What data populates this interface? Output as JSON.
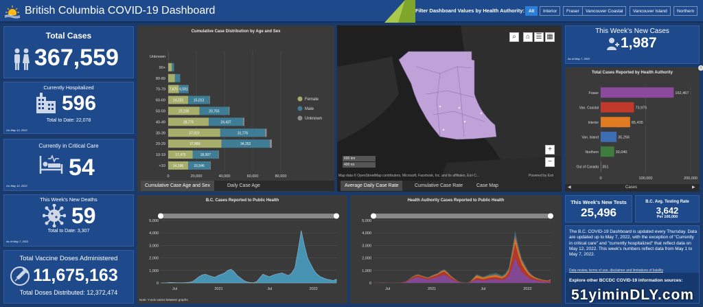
{
  "header": {
    "title": "British Columbia COVID-19 Dashboard",
    "filter_label": "Filter Dashboard Values by Health Authority:",
    "filters": [
      "All",
      "Interior",
      "Fraser",
      "Vancouver Coastal",
      "Vancouver Island",
      "Northern"
    ],
    "selected_filter": "All"
  },
  "total_cases": {
    "label": "Total Cases",
    "value": "367,559"
  },
  "hospitalized": {
    "label": "Currently Hospitalized",
    "value": "596",
    "sub": "Total to Date: 22,078",
    "date": "On May 12, 2022"
  },
  "critical": {
    "label": "Currently in Critical Care",
    "value": "54",
    "date": "On May 12, 2022"
  },
  "deaths": {
    "label": "This Week's New Deaths",
    "value": "59",
    "sub": "Total to Date: 3,307",
    "date": "As of May 7, 2022"
  },
  "vaccine": {
    "label": "Total Vaccine Doses Administered",
    "value": "11,675,163",
    "sub": "Total Doses Distributed: 12,372,474"
  },
  "age_chart": {
    "title": "Cumulative Case Distribution by Age and Sex",
    "tabs": [
      "Cumulative Case Age and Sex",
      "Daily Case Age"
    ]
  },
  "map": {
    "attribution": "Map data © OpenStreetMap contributors, Microsoft, Facebook, Inc. and its affiliates, Esri C...",
    "powered": "Powered by Esri",
    "scale_km": "600 km",
    "scale_mi": "400 mi",
    "tabs": [
      "Average Daily Case Rate",
      "Cumulative Case Rate",
      "Case Map"
    ]
  },
  "new_cases": {
    "label": "This Week's New Cases",
    "value": "1,987",
    "date": "As of May 7, 2022"
  },
  "ha_chart": {
    "title": "Total Cases Reported by Health Authority",
    "xlabel": "Cases"
  },
  "bc_cases": {
    "title": "B.C. Cases Reported to Public Health",
    "note": "Note: Y-axis varies between graphs."
  },
  "ha_cases": {
    "title": "Health Authority Cases Reported to Public Health"
  },
  "tests": {
    "label": "This Week's New Tests",
    "value": "25,496"
  },
  "testing_rate": {
    "label": "B.C. Avg. Testing Rate",
    "value": "3,642",
    "unit": "Per 100,000"
  },
  "info": {
    "text": "The B.C. COVID-19 Dashboard is updated every Thursday. Data are updated up to May 7, 2022, with the exception of \"Currently in critical care\" and \"currently hospitalized\" that reflect data on May 12, 2022. This week's numbers reflect data from May 1 to May 7, 2022.",
    "terms": "Data review, terms of use, disclaimer and limitations of liability",
    "explore": "Explore other BCCDC COVID-19 information sources:"
  },
  "watermark": "51yiminDLY.com",
  "chart_data": [
    {
      "type": "bar",
      "title": "Cumulative Case Distribution by Age and Sex",
      "orientation": "horizontal",
      "stacked": true,
      "categories": [
        "<10",
        "10-19",
        "20-29",
        "30-39",
        "40-49",
        "50-59",
        "60-69",
        "70-79",
        "80-89",
        "90+",
        "Unknown"
      ],
      "series": [
        {
          "name": "Female",
          "values": [
            14196,
            17475,
            37889,
            37022,
            28775,
            22230,
            14231,
            7670,
            4800,
            2600,
            40
          ]
        },
        {
          "name": "Male",
          "values": [
            15546,
            18007,
            34252,
            31776,
            24437,
            20755,
            15013,
            6591,
            3600,
            1500,
            60
          ]
        },
        {
          "name": "Unknown",
          "values": [
            400,
            500,
            1500,
            1200,
            900,
            600,
            400,
            200,
            100,
            50,
            20
          ]
        }
      ],
      "xticks": [
        "0",
        "20,000",
        "40,000",
        "60,000",
        "80,000"
      ],
      "xlim": [
        0,
        80000
      ],
      "legend": "right",
      "colors": {
        "Female": "#a5ae6a",
        "Male": "#3f7d96",
        "Unknown": "#8c8c8c"
      }
    },
    {
      "type": "bar",
      "title": "Total Cases Reported by Health Authority",
      "orientation": "horizontal",
      "categories": [
        "Fraser",
        "Van. Coastal",
        "Interior",
        "Van. Island",
        "Northern",
        "Out of Canada"
      ],
      "values": [
        162467,
        73975,
        65435,
        35256,
        30040,
        351
      ],
      "labels": [
        "162,467",
        "73,975",
        "65,435",
        "35,256",
        "30,040",
        "351"
      ],
      "colors": [
        "#8c4a9e",
        "#c0392b",
        "#e07b24",
        "#3d6db5",
        "#3f7d3f",
        "#666666"
      ],
      "xticks": [
        "0",
        "100,000",
        "200,000"
      ],
      "xlim": [
        0,
        200000
      ],
      "xlabel": "Cases"
    },
    {
      "type": "area",
      "title": "B.C. Cases Reported to Public Health",
      "yticks": [
        "0",
        "1,000",
        "2,000",
        "3,000",
        "4,000",
        "5,000"
      ],
      "ylim": [
        0,
        5000
      ],
      "xticks": [
        "Jul",
        "2021",
        "Jul",
        "2022"
      ],
      "series": [
        {
          "values": [
            0,
            10,
            20,
            40,
            30,
            20,
            15,
            20,
            30,
            60,
            120,
            300,
            500,
            650,
            700,
            600,
            520,
            450,
            600,
            700,
            800,
            1000,
            1100,
            900,
            600,
            400,
            200,
            80,
            40,
            20,
            100,
            400,
            700,
            600,
            500,
            600,
            700,
            750,
            800,
            700,
            600,
            800,
            1200,
            2600,
            4200,
            3000,
            2000,
            1500,
            1000,
            700,
            500,
            400,
            300,
            250,
            200,
            300
          ]
        }
      ]
    },
    {
      "type": "area",
      "title": "Health Authority Cases Reported to Public Health",
      "stacked": true,
      "yticks": [
        "0",
        "1,000",
        "2,000",
        "3,000",
        "4,000",
        "5,000"
      ],
      "ylim": [
        0,
        5000
      ],
      "xticks": [
        "Jul",
        "2021",
        "Jul",
        "2022"
      ],
      "series": [
        {
          "name": "Fraser",
          "values": [
            0,
            5,
            10,
            20,
            15,
            10,
            8,
            10,
            15,
            30,
            70,
            200,
            330,
            420,
            450,
            380,
            320,
            260,
            350,
            420,
            480,
            600,
            650,
            500,
            320,
            200,
            100,
            40,
            20,
            10,
            40,
            150,
            250,
            220,
            180,
            220,
            260,
            280,
            300,
            260,
            220,
            320,
            550,
            1200,
            2000,
            1400,
            900,
            650,
            420,
            300,
            220,
            170,
            120,
            100,
            80,
            120
          ]
        },
        {
          "name": "Van. Coastal",
          "values": [
            0,
            3,
            5,
            10,
            8,
            6,
            4,
            5,
            8,
            15,
            30,
            60,
            100,
            140,
            150,
            130,
            110,
            100,
            130,
            150,
            170,
            220,
            250,
            200,
            150,
            100,
            60,
            20,
            10,
            5,
            20,
            80,
            150,
            130,
            110,
            130,
            150,
            160,
            170,
            150,
            130,
            180,
            300,
            700,
            1100,
            800,
            550,
            400,
            280,
            200,
            140,
            110,
            90,
            70,
            60,
            90
          ]
        },
        {
          "name": "Interior",
          "values": [
            0,
            1,
            3,
            5,
            4,
            2,
            2,
            3,
            4,
            8,
            12,
            25,
            40,
            50,
            60,
            50,
            50,
            50,
            70,
            80,
            90,
            110,
            120,
            120,
            80,
            60,
            25,
            10,
            6,
            3,
            25,
            120,
            220,
            180,
            150,
            150,
            170,
            180,
            190,
            160,
            140,
            180,
            200,
            400,
            650,
            500,
            350,
            280,
            190,
            140,
            100,
            80,
            60,
            50,
            40,
            60
          ]
        },
        {
          "name": "Van. Island",
          "values": [
            0,
            1,
            1,
            3,
            2,
            1,
            1,
            1,
            2,
            4,
            5,
            10,
            20,
            25,
            25,
            25,
            25,
            25,
            30,
            30,
            40,
            45,
            50,
            50,
            30,
            25,
            10,
            6,
            3,
            1,
            10,
            30,
            50,
            45,
            40,
            60,
            70,
            70,
            80,
            70,
            60,
            70,
            90,
            200,
            300,
            200,
            140,
            110,
            80,
            50,
            30,
            30,
            25,
            20,
            15,
            25
          ]
        },
        {
          "name": "Northern",
          "values": [
            0,
            0,
            1,
            2,
            1,
            1,
            0,
            1,
            1,
            3,
            3,
            5,
            10,
            15,
            15,
            15,
            15,
            15,
            20,
            20,
            20,
            25,
            30,
            30,
            20,
            15,
            5,
            4,
            1,
            1,
            5,
            20,
            30,
            25,
            20,
            40,
            50,
            60,
            60,
            60,
            50,
            50,
            60,
            100,
            150,
            100,
            60,
            60,
            30,
            10,
            10,
            10,
            5,
            10,
            5,
            5
          ]
        }
      ],
      "colors": [
        "#8c4a9e",
        "#c0392b",
        "#e07b24",
        "#3d6db5",
        "#3f7d3f"
      ]
    }
  ]
}
